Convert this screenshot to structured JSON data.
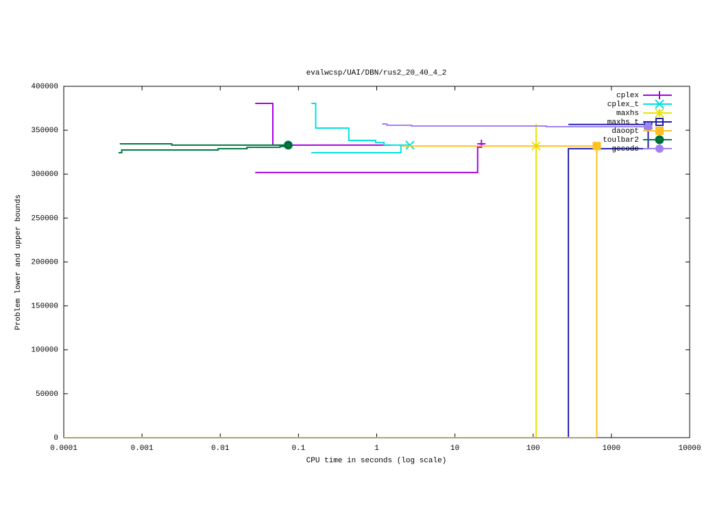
{
  "chart_data": {
    "type": "line",
    "title": "evalwcsp/UAI/DBN/rus2_20_40_4_2",
    "xlabel": "CPU time in seconds (log scale)",
    "ylabel": "Problem lower and upper bounds",
    "xscale": "log",
    "xlim": [
      0.0001,
      10000
    ],
    "ylim": [
      0,
      400000
    ],
    "xticks": [
      0.0001,
      0.001,
      0.01,
      0.1,
      1,
      10,
      100,
      1000,
      10000
    ],
    "yticks": [
      0,
      50000,
      100000,
      150000,
      200000,
      250000,
      300000,
      350000,
      400000
    ],
    "legend": "upper-right",
    "series": [
      {
        "name": "cplex",
        "color": "#a800e0",
        "marker": "plus",
        "x": [
          0.028,
          0.047,
          0.047,
          1.5,
          null,
          0.028,
          19.5,
          19.5,
          21.8,
          21.8
        ],
        "values": [
          380500,
          380500,
          333000,
          333000,
          null,
          301800,
          301800,
          330600,
          330600,
          334500
        ]
      },
      {
        "name": "cplex_t",
        "color": "#00e0e0",
        "marker": "cross",
        "x": [
          0.146,
          2.04,
          2.04,
          null,
          0.146,
          0.166,
          0.166,
          0.44,
          0.44,
          0.97,
          0.97,
          1.24,
          1.24,
          2.66
        ],
        "values": [
          324400,
          324400,
          333000,
          null,
          380500,
          380500,
          352400,
          352400,
          338400,
          338400,
          336000,
          336000,
          333000,
          333000
        ]
      },
      {
        "name": "maxhs",
        "color": "#e6e600",
        "marker": "star",
        "x": [
          0.0001,
          109,
          109,
          109
        ],
        "values": [
          0,
          0,
          357100,
          332000
        ]
      },
      {
        "name": "maxhs_t",
        "color": "#2020b0",
        "marker": "open-square",
        "x": [
          282,
          2950,
          null,
          0.0001,
          282,
          282,
          2950,
          2950
        ],
        "values": [
          356500,
          356500,
          null,
          0,
          0,
          329000,
          329000,
          355600
        ]
      },
      {
        "name": "daoopt",
        "color": "#ffc020",
        "marker": "square",
        "x": [
          0.0001,
          650,
          650,
          null,
          2.12,
          650
        ],
        "values": [
          0,
          0,
          332000,
          null,
          332000,
          332000
        ]
      },
      {
        "name": "toulbar2",
        "color": "#007840",
        "marker": "open-circle",
        "x": [
          0.0005,
          0.00055,
          0.00055,
          0.0094,
          0.0094,
          0.022,
          0.022,
          0.058,
          0.058,
          0.074,
          null,
          0.00052,
          0.0024,
          0.0024,
          0.074
        ],
        "values": [
          324400,
          324400,
          327500,
          327500,
          329000,
          329000,
          330500,
          330500,
          331500,
          331500,
          null,
          334500,
          334500,
          333000,
          333000
        ]
      },
      {
        "name": "gecode",
        "color": "#a080f0",
        "marker": "circle",
        "x": [
          1.17,
          1.35,
          1.35,
          2.8,
          2.8,
          148,
          148,
          2950
        ],
        "values": [
          357100,
          357100,
          355600,
          355600,
          354800,
          354800,
          354000,
          354000
        ]
      }
    ]
  }
}
